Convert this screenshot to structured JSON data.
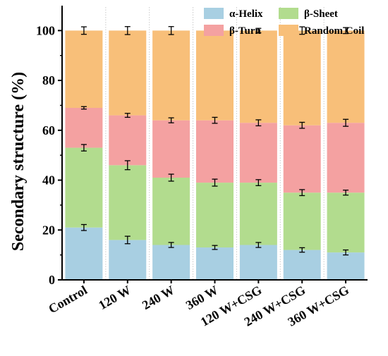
{
  "chart_data": {
    "type": "bar",
    "stacked": true,
    "title": "",
    "xlabel": "",
    "ylabel": "Secondary structure (%)",
    "ylim": [
      0,
      110
    ],
    "yticks": [
      0,
      20,
      40,
      60,
      80,
      100
    ],
    "grid": false,
    "legend_position": "top-right",
    "categories": [
      "Control",
      "120 W",
      "240 W",
      "360 W",
      "120 W+CSG",
      "240 W+CSG",
      "360 W+CSG"
    ],
    "series": [
      {
        "name": "α-Helix",
        "color": "#a8cfe2",
        "values": [
          21,
          16,
          14,
          13,
          14,
          12,
          11
        ],
        "errors": [
          1.2,
          1.5,
          1.0,
          0.8,
          1.0,
          0.9,
          1.0
        ]
      },
      {
        "name": "β-Sheet",
        "color": "#b2dc8e",
        "values": [
          32,
          30,
          27,
          26,
          25,
          23,
          24
        ],
        "errors": [
          1.3,
          1.8,
          1.4,
          1.4,
          1.2,
          1.2,
          1.0
        ]
      },
      {
        "name": "β-Turn",
        "color": "#f4a1a1",
        "values": [
          16,
          20,
          23,
          25,
          24,
          27,
          28
        ],
        "errors": [
          0.5,
          0.8,
          1.0,
          1.2,
          1.2,
          1.2,
          1.4
        ]
      },
      {
        "name": "Random Coil",
        "color": "#f8bf79",
        "values": [
          31,
          34,
          36,
          36,
          37,
          38,
          37
        ],
        "errors": [
          1.5,
          1.6,
          1.6,
          0.8,
          0.9,
          1.5,
          1.2
        ]
      }
    ]
  }
}
